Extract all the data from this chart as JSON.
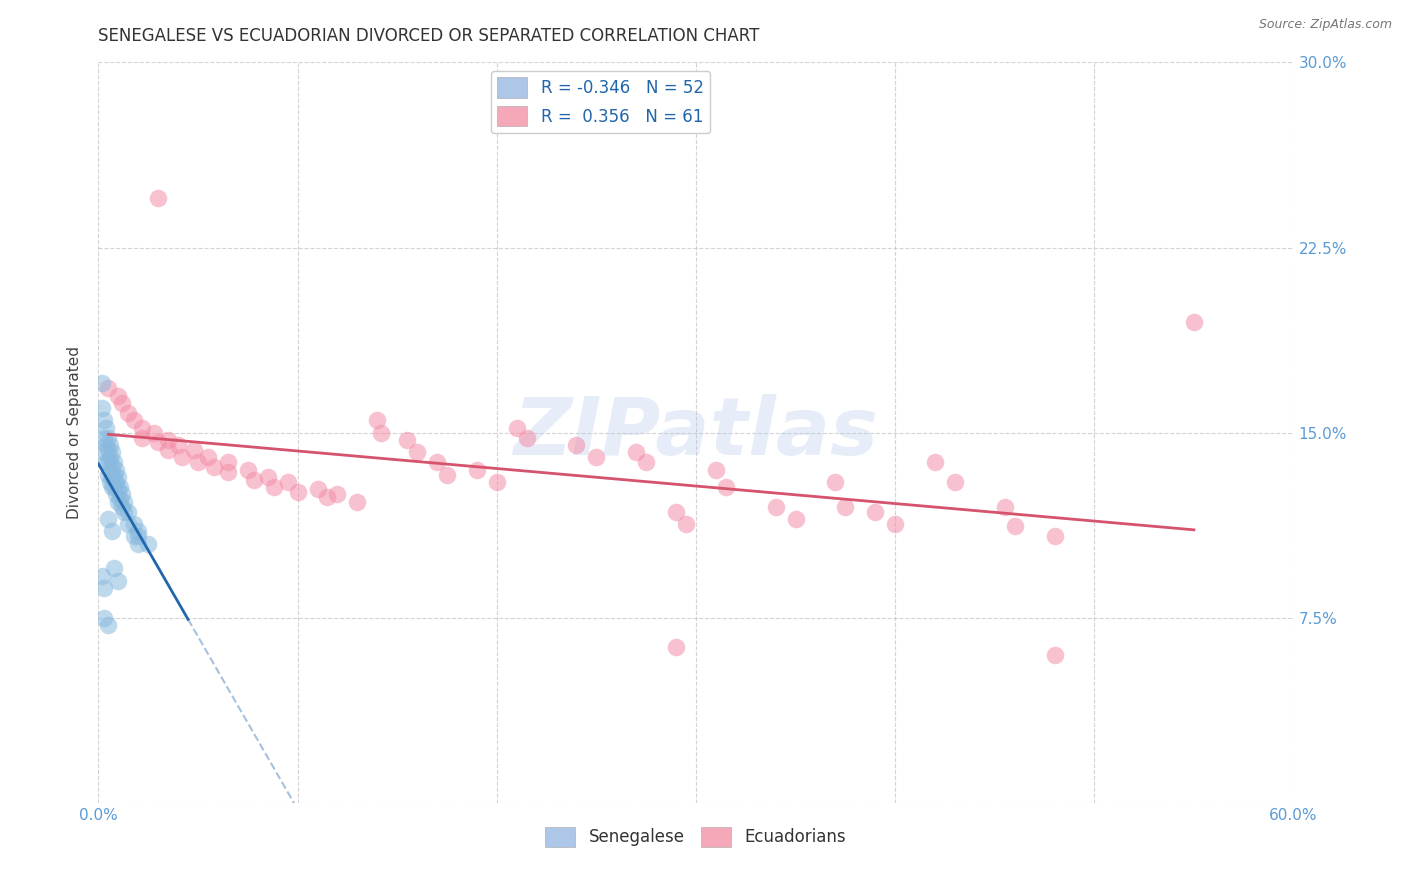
{
  "title": "SENEGALESE VS ECUADORIAN DIVORCED OR SEPARATED CORRELATION CHART",
  "source": "Source: ZipAtlas.com",
  "ylabel": "Divorced or Separated",
  "xlim": [
    0.0,
    0.6
  ],
  "ylim": [
    0.0,
    0.3
  ],
  "xticks": [
    0.0,
    0.1,
    0.2,
    0.3,
    0.4,
    0.5,
    0.6
  ],
  "xtick_labels": [
    "0.0%",
    "",
    "",
    "",
    "",
    "",
    "60.0%"
  ],
  "yticks": [
    0.0,
    0.075,
    0.15,
    0.225,
    0.3
  ],
  "ytick_labels_right": [
    "",
    "7.5%",
    "15.0%",
    "22.5%",
    "30.0%"
  ],
  "senegalese_color": "#89b9de",
  "ecuadorian_color": "#f48ea8",
  "background_color": "#ffffff",
  "grid_color": "#c8c8c8",
  "watermark": "ZIPatlas",
  "sen_line_color": "#2166ac",
  "ecu_line_color": "#d6536d",
  "senegalese_points": [
    [
      0.002,
      0.17
    ],
    [
      0.002,
      0.16
    ],
    [
      0.003,
      0.155
    ],
    [
      0.003,
      0.148
    ],
    [
      0.003,
      0.142
    ],
    [
      0.004,
      0.152
    ],
    [
      0.004,
      0.145
    ],
    [
      0.004,
      0.138
    ],
    [
      0.005,
      0.148
    ],
    [
      0.005,
      0.143
    ],
    [
      0.005,
      0.138
    ],
    [
      0.005,
      0.133
    ],
    [
      0.006,
      0.145
    ],
    [
      0.006,
      0.14
    ],
    [
      0.006,
      0.135
    ],
    [
      0.006,
      0.13
    ],
    [
      0.007,
      0.142
    ],
    [
      0.007,
      0.137
    ],
    [
      0.007,
      0.132
    ],
    [
      0.007,
      0.128
    ],
    [
      0.008,
      0.138
    ],
    [
      0.008,
      0.133
    ],
    [
      0.008,
      0.128
    ],
    [
      0.009,
      0.135
    ],
    [
      0.009,
      0.13
    ],
    [
      0.009,
      0.125
    ],
    [
      0.01,
      0.132
    ],
    [
      0.01,
      0.127
    ],
    [
      0.01,
      0.122
    ],
    [
      0.011,
      0.128
    ],
    [
      0.011,
      0.123
    ],
    [
      0.012,
      0.125
    ],
    [
      0.012,
      0.12
    ],
    [
      0.013,
      0.122
    ],
    [
      0.013,
      0.118
    ],
    [
      0.015,
      0.118
    ],
    [
      0.015,
      0.113
    ],
    [
      0.018,
      0.113
    ],
    [
      0.018,
      0.108
    ],
    [
      0.02,
      0.11
    ],
    [
      0.02,
      0.105
    ],
    [
      0.002,
      0.092
    ],
    [
      0.003,
      0.087
    ],
    [
      0.008,
      0.095
    ],
    [
      0.01,
      0.09
    ],
    [
      0.003,
      0.075
    ],
    [
      0.005,
      0.072
    ],
    [
      0.02,
      0.108
    ],
    [
      0.025,
      0.105
    ],
    [
      0.005,
      0.115
    ],
    [
      0.007,
      0.11
    ]
  ],
  "ecuadorian_points": [
    [
      0.03,
      0.245
    ],
    [
      0.005,
      0.168
    ],
    [
      0.01,
      0.165
    ],
    [
      0.012,
      0.162
    ],
    [
      0.015,
      0.158
    ],
    [
      0.018,
      0.155
    ],
    [
      0.022,
      0.152
    ],
    [
      0.022,
      0.148
    ],
    [
      0.028,
      0.15
    ],
    [
      0.03,
      0.146
    ],
    [
      0.035,
      0.147
    ],
    [
      0.035,
      0.143
    ],
    [
      0.04,
      0.145
    ],
    [
      0.042,
      0.14
    ],
    [
      0.048,
      0.143
    ],
    [
      0.05,
      0.138
    ],
    [
      0.055,
      0.14
    ],
    [
      0.058,
      0.136
    ],
    [
      0.065,
      0.138
    ],
    [
      0.065,
      0.134
    ],
    [
      0.075,
      0.135
    ],
    [
      0.078,
      0.131
    ],
    [
      0.085,
      0.132
    ],
    [
      0.088,
      0.128
    ],
    [
      0.095,
      0.13
    ],
    [
      0.1,
      0.126
    ],
    [
      0.11,
      0.127
    ],
    [
      0.115,
      0.124
    ],
    [
      0.12,
      0.125
    ],
    [
      0.13,
      0.122
    ],
    [
      0.14,
      0.155
    ],
    [
      0.142,
      0.15
    ],
    [
      0.155,
      0.147
    ],
    [
      0.16,
      0.142
    ],
    [
      0.17,
      0.138
    ],
    [
      0.175,
      0.133
    ],
    [
      0.19,
      0.135
    ],
    [
      0.2,
      0.13
    ],
    [
      0.21,
      0.152
    ],
    [
      0.215,
      0.148
    ],
    [
      0.24,
      0.145
    ],
    [
      0.25,
      0.14
    ],
    [
      0.27,
      0.142
    ],
    [
      0.275,
      0.138
    ],
    [
      0.29,
      0.118
    ],
    [
      0.295,
      0.113
    ],
    [
      0.31,
      0.135
    ],
    [
      0.315,
      0.128
    ],
    [
      0.34,
      0.12
    ],
    [
      0.35,
      0.115
    ],
    [
      0.37,
      0.13
    ],
    [
      0.375,
      0.12
    ],
    [
      0.39,
      0.118
    ],
    [
      0.4,
      0.113
    ],
    [
      0.42,
      0.138
    ],
    [
      0.43,
      0.13
    ],
    [
      0.455,
      0.12
    ],
    [
      0.46,
      0.112
    ],
    [
      0.48,
      0.108
    ],
    [
      0.55,
      0.195
    ],
    [
      0.29,
      0.063
    ],
    [
      0.48,
      0.06
    ]
  ]
}
